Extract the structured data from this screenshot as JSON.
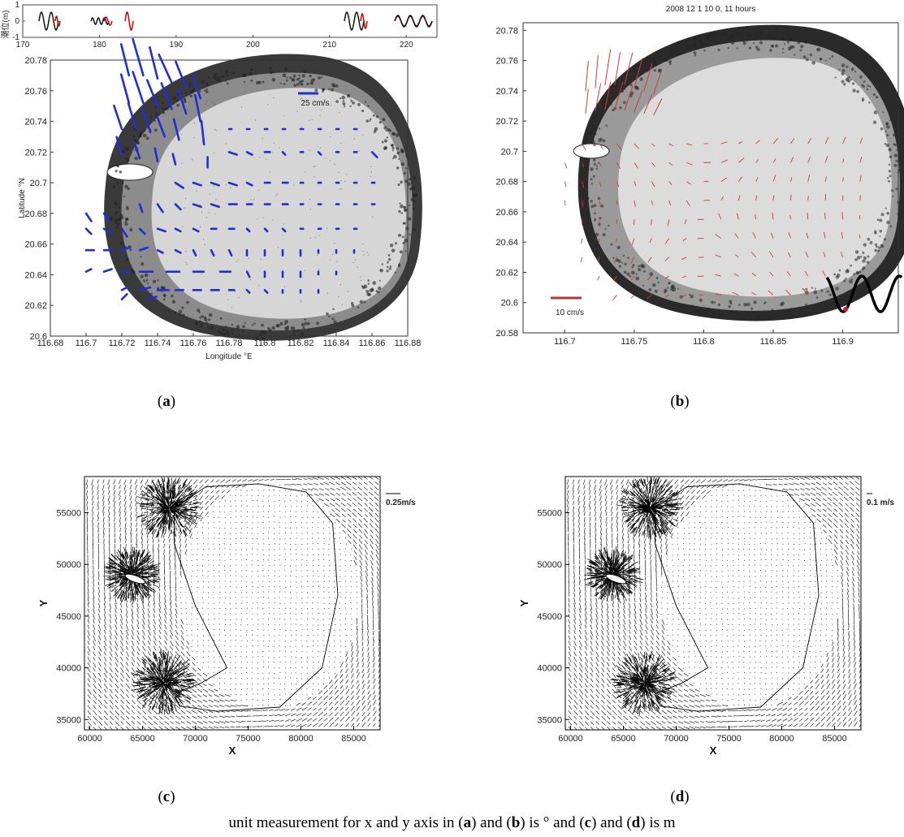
{
  "chart_data": [
    {
      "panel": "a",
      "type": "quiver",
      "background": "satellite image of atoll",
      "ylabel": "Latitude °N",
      "xlabel": "Longitude °E",
      "xlim": [
        116.68,
        116.88
      ],
      "ylim": [
        20.6,
        20.78
      ],
      "x_ticks": [
        "116.68",
        "116.7",
        "116.72",
        "116.74",
        "116.76",
        "116.78",
        "116.8",
        "116.82",
        "116.84",
        "116.86",
        "116.88"
      ],
      "y_ticks": [
        "20.6",
        "20.62",
        "20.64",
        "20.66",
        "20.68",
        "20.7",
        "20.72",
        "20.74",
        "20.76",
        "20.78"
      ],
      "reference_label": "25 cm/s",
      "arrow_color": "#1f2fd6",
      "inset": {
        "ylabel": "潮位(m)",
        "x_ticks": [
          "170",
          "180",
          "190",
          "200",
          "210",
          "220"
        ],
        "y_ticks": [
          "1",
          "0",
          "-1"
        ],
        "xlim": [
          170,
          224
        ],
        "ylim": [
          -1,
          1
        ]
      },
      "vectors": [
        {
          "lon": 116.724,
          "lat": 20.77,
          "u": -3,
          "v": 12
        },
        {
          "lon": 116.732,
          "lat": 20.77,
          "u": -4,
          "v": 14
        },
        {
          "lon": 116.74,
          "lat": 20.768,
          "u": -3,
          "v": 12
        },
        {
          "lon": 116.748,
          "lat": 20.765,
          "u": -5,
          "v": 11
        },
        {
          "lon": 116.756,
          "lat": 20.762,
          "u": -4,
          "v": 10
        },
        {
          "lon": 116.764,
          "lat": 20.755,
          "u": -3,
          "v": 9
        },
        {
          "lon": 116.724,
          "lat": 20.752,
          "u": -3,
          "v": 11
        },
        {
          "lon": 116.732,
          "lat": 20.752,
          "u": -4,
          "v": 12
        },
        {
          "lon": 116.74,
          "lat": 20.75,
          "u": -4,
          "v": 10
        },
        {
          "lon": 116.748,
          "lat": 20.748,
          "u": -4,
          "v": 10
        },
        {
          "lon": 116.756,
          "lat": 20.745,
          "u": -3,
          "v": 9
        },
        {
          "lon": 116.764,
          "lat": 20.74,
          "u": -2,
          "v": 10
        },
        {
          "lon": 116.72,
          "lat": 20.735,
          "u": -3,
          "v": 9
        },
        {
          "lon": 116.728,
          "lat": 20.735,
          "u": -3,
          "v": 10
        },
        {
          "lon": 116.736,
          "lat": 20.733,
          "u": -3,
          "v": 9
        },
        {
          "lon": 116.744,
          "lat": 20.73,
          "u": -3,
          "v": 8
        },
        {
          "lon": 116.752,
          "lat": 20.728,
          "u": -2,
          "v": 8
        },
        {
          "lon": 116.766,
          "lat": 20.725,
          "u": -1,
          "v": 9
        },
        {
          "lon": 116.72,
          "lat": 20.718,
          "u": -2,
          "v": 7
        },
        {
          "lon": 116.73,
          "lat": 20.716,
          "u": -2,
          "v": 6
        },
        {
          "lon": 116.74,
          "lat": 20.714,
          "u": -1,
          "v": 5
        },
        {
          "lon": 116.75,
          "lat": 20.712,
          "u": -1,
          "v": 4
        },
        {
          "lon": 116.768,
          "lat": 20.71,
          "u": 0,
          "v": 4
        },
        {
          "lon": 116.78,
          "lat": 20.72,
          "u": 3,
          "v": -1
        },
        {
          "lon": 116.79,
          "lat": 20.72,
          "u": 2,
          "v": -1
        },
        {
          "lon": 116.8,
          "lat": 20.72,
          "u": 2,
          "v": 0
        },
        {
          "lon": 116.81,
          "lat": 20.72,
          "u": 1,
          "v": -1
        },
        {
          "lon": 116.82,
          "lat": 20.72,
          "u": 1,
          "v": 0
        },
        {
          "lon": 116.83,
          "lat": 20.72,
          "u": 1,
          "v": -1
        },
        {
          "lon": 116.84,
          "lat": 20.72,
          "u": 1,
          "v": 0
        },
        {
          "lon": 116.85,
          "lat": 20.72,
          "u": 1,
          "v": 0
        },
        {
          "lon": 116.86,
          "lat": 20.72,
          "u": 2,
          "v": -2
        },
        {
          "lon": 116.78,
          "lat": 20.735,
          "u": 1,
          "v": 0
        },
        {
          "lon": 116.79,
          "lat": 20.735,
          "u": 1,
          "v": 0
        },
        {
          "lon": 116.8,
          "lat": 20.735,
          "u": 1,
          "v": 0
        },
        {
          "lon": 116.81,
          "lat": 20.735,
          "u": 1,
          "v": 0
        },
        {
          "lon": 116.82,
          "lat": 20.735,
          "u": 1,
          "v": 0
        },
        {
          "lon": 116.83,
          "lat": 20.735,
          "u": 1,
          "v": 0
        },
        {
          "lon": 116.84,
          "lat": 20.735,
          "u": 1,
          "v": 0
        },
        {
          "lon": 116.85,
          "lat": 20.735,
          "u": 1,
          "v": 0
        },
        {
          "lon": 116.75,
          "lat": 20.7,
          "u": 3,
          "v": -2
        },
        {
          "lon": 116.76,
          "lat": 20.7,
          "u": 3,
          "v": -1
        },
        {
          "lon": 116.77,
          "lat": 20.7,
          "u": 3,
          "v": -1
        },
        {
          "lon": 116.78,
          "lat": 20.7,
          "u": 3,
          "v": -1
        },
        {
          "lon": 116.79,
          "lat": 20.7,
          "u": 2,
          "v": -1
        },
        {
          "lon": 116.8,
          "lat": 20.7,
          "u": 2,
          "v": 0
        },
        {
          "lon": 116.81,
          "lat": 20.7,
          "u": 2,
          "v": 0
        },
        {
          "lon": 116.82,
          "lat": 20.7,
          "u": 1,
          "v": 0
        },
        {
          "lon": 116.83,
          "lat": 20.7,
          "u": 1,
          "v": 0
        },
        {
          "lon": 116.84,
          "lat": 20.7,
          "u": 1,
          "v": 0
        },
        {
          "lon": 116.85,
          "lat": 20.7,
          "u": 1,
          "v": 0
        },
        {
          "lon": 116.86,
          "lat": 20.7,
          "u": 1,
          "v": 0
        },
        {
          "lon": 116.73,
          "lat": 20.686,
          "u": 1,
          "v": -3
        },
        {
          "lon": 116.74,
          "lat": 20.686,
          "u": 2,
          "v": -3
        },
        {
          "lon": 116.75,
          "lat": 20.686,
          "u": 2,
          "v": -2
        },
        {
          "lon": 116.76,
          "lat": 20.686,
          "u": 3,
          "v": -1
        },
        {
          "lon": 116.77,
          "lat": 20.686,
          "u": 3,
          "v": -1
        },
        {
          "lon": 116.78,
          "lat": 20.686,
          "u": 3,
          "v": 0
        },
        {
          "lon": 116.79,
          "lat": 20.686,
          "u": 2,
          "v": 0
        },
        {
          "lon": 116.8,
          "lat": 20.686,
          "u": 2,
          "v": 0
        },
        {
          "lon": 116.81,
          "lat": 20.686,
          "u": 2,
          "v": 0
        },
        {
          "lon": 116.82,
          "lat": 20.686,
          "u": 1,
          "v": 0
        },
        {
          "lon": 116.83,
          "lat": 20.686,
          "u": 1,
          "v": 0
        },
        {
          "lon": 116.84,
          "lat": 20.686,
          "u": 1,
          "v": 0
        },
        {
          "lon": 116.85,
          "lat": 20.686,
          "u": 1,
          "v": 0
        },
        {
          "lon": 116.86,
          "lat": 20.686,
          "u": 1,
          "v": 0
        },
        {
          "lon": 116.7,
          "lat": 20.68,
          "u": 2,
          "v": -3
        },
        {
          "lon": 116.71,
          "lat": 20.68,
          "u": 2,
          "v": -3
        },
        {
          "lon": 116.7,
          "lat": 20.67,
          "u": 2,
          "v": -2
        },
        {
          "lon": 116.71,
          "lat": 20.67,
          "u": 3,
          "v": -2
        },
        {
          "lon": 116.72,
          "lat": 20.67,
          "u": 2,
          "v": -3
        },
        {
          "lon": 116.73,
          "lat": 20.67,
          "u": 2,
          "v": -2
        },
        {
          "lon": 116.74,
          "lat": 20.67,
          "u": 3,
          "v": -1
        },
        {
          "lon": 116.75,
          "lat": 20.67,
          "u": 2,
          "v": -1
        },
        {
          "lon": 116.76,
          "lat": 20.67,
          "u": 2,
          "v": -1
        },
        {
          "lon": 116.77,
          "lat": 20.67,
          "u": 2,
          "v": 0
        },
        {
          "lon": 116.78,
          "lat": 20.67,
          "u": 2,
          "v": 0
        },
        {
          "lon": 116.79,
          "lat": 20.67,
          "u": 1,
          "v": -1
        },
        {
          "lon": 116.8,
          "lat": 20.67,
          "u": 1,
          "v": -1
        },
        {
          "lon": 116.81,
          "lat": 20.67,
          "u": 1,
          "v": -1
        },
        {
          "lon": 116.82,
          "lat": 20.67,
          "u": 1,
          "v": 0
        },
        {
          "lon": 116.83,
          "lat": 20.67,
          "u": 1,
          "v": 0
        },
        {
          "lon": 116.84,
          "lat": 20.67,
          "u": 1,
          "v": 0
        },
        {
          "lon": 116.85,
          "lat": 20.67,
          "u": 1,
          "v": 0
        },
        {
          "lon": 116.7,
          "lat": 20.656,
          "u": 3,
          "v": 0
        },
        {
          "lon": 116.71,
          "lat": 20.656,
          "u": 3,
          "v": 0
        },
        {
          "lon": 116.72,
          "lat": 20.656,
          "u": 3,
          "v": 1
        },
        {
          "lon": 116.73,
          "lat": 20.656,
          "u": 3,
          "v": 1
        },
        {
          "lon": 116.74,
          "lat": 20.656,
          "u": 2,
          "v": -1
        },
        {
          "lon": 116.75,
          "lat": 20.656,
          "u": 2,
          "v": -1
        },
        {
          "lon": 116.76,
          "lat": 20.656,
          "u": 1,
          "v": -2
        },
        {
          "lon": 116.77,
          "lat": 20.656,
          "u": 1,
          "v": -2
        },
        {
          "lon": 116.78,
          "lat": 20.656,
          "u": 1,
          "v": -2
        },
        {
          "lon": 116.79,
          "lat": 20.656,
          "u": 0,
          "v": -2
        },
        {
          "lon": 116.8,
          "lat": 20.656,
          "u": 0,
          "v": -2
        },
        {
          "lon": 116.81,
          "lat": 20.656,
          "u": 0,
          "v": -2
        },
        {
          "lon": 116.82,
          "lat": 20.656,
          "u": 0,
          "v": -2
        },
        {
          "lon": 116.83,
          "lat": 20.656,
          "u": 0,
          "v": -1
        },
        {
          "lon": 116.84,
          "lat": 20.656,
          "u": 0,
          "v": -1
        },
        {
          "lon": 116.85,
          "lat": 20.656,
          "u": 0,
          "v": -1
        },
        {
          "lon": 116.7,
          "lat": 20.642,
          "u": 2,
          "v": 1
        },
        {
          "lon": 116.71,
          "lat": 20.642,
          "u": 3,
          "v": 1
        },
        {
          "lon": 116.72,
          "lat": 20.642,
          "u": 3,
          "v": 0
        },
        {
          "lon": 116.73,
          "lat": 20.642,
          "u": 5,
          "v": 0
        },
        {
          "lon": 116.745,
          "lat": 20.642,
          "u": 5,
          "v": 0
        },
        {
          "lon": 116.76,
          "lat": 20.642,
          "u": 4,
          "v": 0
        },
        {
          "lon": 116.775,
          "lat": 20.642,
          "u": 4,
          "v": 0
        },
        {
          "lon": 116.79,
          "lat": 20.642,
          "u": 1,
          "v": -2
        },
        {
          "lon": 116.8,
          "lat": 20.642,
          "u": 0,
          "v": -2
        },
        {
          "lon": 116.81,
          "lat": 20.642,
          "u": 0,
          "v": -2
        },
        {
          "lon": 116.82,
          "lat": 20.642,
          "u": 0,
          "v": -2
        },
        {
          "lon": 116.83,
          "lat": 20.642,
          "u": 0,
          "v": -1
        },
        {
          "lon": 116.84,
          "lat": 20.642,
          "u": 0,
          "v": -1
        },
        {
          "lon": 116.72,
          "lat": 20.63,
          "u": 2,
          "v": 1
        },
        {
          "lon": 116.73,
          "lat": 20.63,
          "u": 4,
          "v": 1
        },
        {
          "lon": 116.74,
          "lat": 20.63,
          "u": 4,
          "v": 0
        },
        {
          "lon": 116.75,
          "lat": 20.63,
          "u": 3,
          "v": 0
        },
        {
          "lon": 116.76,
          "lat": 20.63,
          "u": 3,
          "v": 0
        },
        {
          "lon": 116.77,
          "lat": 20.63,
          "u": 3,
          "v": 0
        },
        {
          "lon": 116.78,
          "lat": 20.63,
          "u": 2,
          "v": 0
        },
        {
          "lon": 116.79,
          "lat": 20.63,
          "u": 1,
          "v": -1
        },
        {
          "lon": 116.8,
          "lat": 20.63,
          "u": 1,
          "v": -1
        },
        {
          "lon": 116.81,
          "lat": 20.63,
          "u": 0,
          "v": -1
        },
        {
          "lon": 116.82,
          "lat": 20.63,
          "u": 0,
          "v": -1
        },
        {
          "lon": 116.83,
          "lat": 20.63,
          "u": 0,
          "v": -1
        },
        {
          "lon": 116.72,
          "lat": 20.624,
          "u": 2,
          "v": 2
        },
        {
          "lon": 116.735,
          "lat": 20.624,
          "u": 3,
          "v": 1
        }
      ]
    },
    {
      "panel": "b",
      "type": "quiver",
      "background": "satellite image of atoll",
      "title": "2008   12    1   10    0,  11 hours",
      "xlim": [
        116.67,
        116.94
      ],
      "ylim": [
        20.58,
        20.785
      ],
      "x_ticks": [
        "116.7",
        "116.75",
        "116.8",
        "116.85",
        "116.9"
      ],
      "y_ticks": [
        "20.58",
        "20.6",
        "20.62",
        "20.64",
        "20.66",
        "20.68",
        "20.7",
        "20.72",
        "20.74",
        "20.76",
        "20.78"
      ],
      "reference_label": "10 cm/s",
      "arrow_color": "#d63a2a",
      "vectors_note": "red arrows, strong north-northeastward flow in northwest, weak elsewhere",
      "vectors": [
        {
          "lon": 116.715,
          "lat": 20.74,
          "u": 1,
          "v": 11
        },
        {
          "lon": 116.722,
          "lat": 20.742,
          "u": 1,
          "v": 12
        },
        {
          "lon": 116.729,
          "lat": 20.744,
          "u": 2,
          "v": 13
        },
        {
          "lon": 116.736,
          "lat": 20.744,
          "u": 2,
          "v": 12
        },
        {
          "lon": 116.743,
          "lat": 20.744,
          "u": 3,
          "v": 12
        },
        {
          "lon": 116.75,
          "lat": 20.742,
          "u": 3,
          "v": 11
        },
        {
          "lon": 116.757,
          "lat": 20.74,
          "u": 3,
          "v": 10
        },
        {
          "lon": 116.764,
          "lat": 20.738,
          "u": 3,
          "v": 9
        },
        {
          "lon": 116.715,
          "lat": 20.725,
          "u": 1,
          "v": 9
        },
        {
          "lon": 116.722,
          "lat": 20.727,
          "u": 2,
          "v": 10
        },
        {
          "lon": 116.729,
          "lat": 20.728,
          "u": 2,
          "v": 10
        },
        {
          "lon": 116.736,
          "lat": 20.728,
          "u": 3,
          "v": 10
        },
        {
          "lon": 116.743,
          "lat": 20.727,
          "u": 3,
          "v": 9
        },
        {
          "lon": 116.75,
          "lat": 20.726,
          "u": 3,
          "v": 8
        },
        {
          "lon": 116.757,
          "lat": 20.725,
          "u": 3,
          "v": 7
        },
        {
          "lon": 116.764,
          "lat": 20.724,
          "u": 3,
          "v": 6
        }
      ],
      "inset_curve": "black wave with red marker"
    },
    {
      "panel": "c",
      "type": "quiver",
      "xlabel": "X",
      "ylabel": "Y",
      "xlim": [
        59500,
        87500
      ],
      "ylim": [
        34000,
        58500
      ],
      "x_ticks": [
        "60000",
        "65000",
        "70000",
        "75000",
        "80000",
        "85000"
      ],
      "y_ticks": [
        "35000",
        "40000",
        "45000",
        "50000",
        "55000"
      ],
      "reference_label": "0.25m/s"
    },
    {
      "panel": "d",
      "type": "quiver",
      "xlabel": "X",
      "ylabel": "Y",
      "xlim": [
        59500,
        87500
      ],
      "ylim": [
        34000,
        58500
      ],
      "x_ticks": [
        "60000",
        "65000",
        "70000",
        "75000",
        "80000",
        "85000"
      ],
      "y_ticks": [
        "35000",
        "40000",
        "45000",
        "50000",
        "55000"
      ],
      "reference_label": "0.1  m/s"
    }
  ],
  "captions": {
    "a": "a",
    "b": "b",
    "c": "c",
    "d": "d"
  },
  "footnote": {
    "part1": "unit measurement for x and y axis in (",
    "a": "a",
    "part2": ") and (",
    "b": "b",
    "part3": ") is ° and (",
    "c": "c",
    "part4": ") and (",
    "d": "d",
    "part5": ") is m"
  }
}
